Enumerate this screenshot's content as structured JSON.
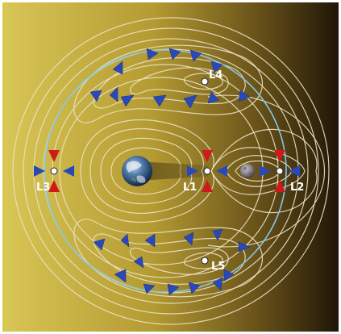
{
  "diagram": {
    "labels": {
      "L1": "L1",
      "L2": "L2",
      "L3": "L3",
      "L4": "L4",
      "L5": "L5"
    },
    "colors": {
      "background_left": "#d7c451",
      "background_right": "#1d1406",
      "contour": "#e9e2c4",
      "orbit": "#86c8e8",
      "arrow_blue": "#2a49b8",
      "arrow_red": "#cf1a1c",
      "point_marker": "#ffffff"
    },
    "icons": {
      "earth": "earth-icon",
      "moon": "moon-icon"
    }
  }
}
